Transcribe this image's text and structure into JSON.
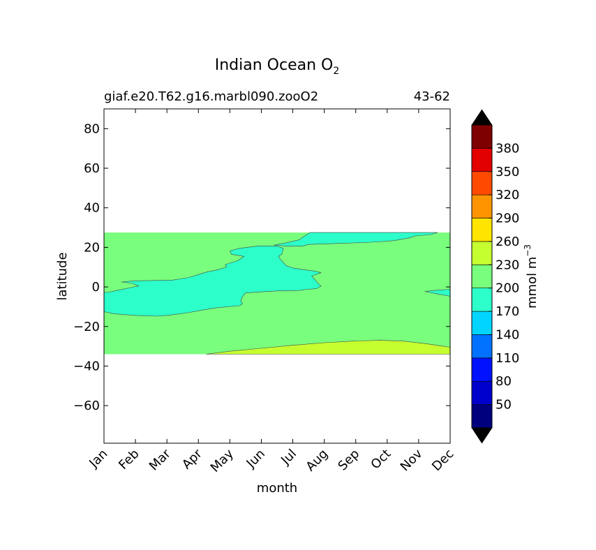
{
  "chart_data": {
    "type": "heatmap",
    "title": "Indian Ocean O",
    "title_subscript": "2",
    "subtitle_left": "giaf.e20.T62.g16.marbl090.zooO2",
    "subtitle_right": "43-62",
    "xlabel": "month",
    "ylabel": "latitude",
    "x_ticks": [
      "Jan",
      "Feb",
      "Mar",
      "Apr",
      "May",
      "Jun",
      "Jul",
      "Aug",
      "Sep",
      "Oct",
      "Nov",
      "Dec"
    ],
    "xlim": [
      0,
      11
    ],
    "ylim": [
      -79,
      90
    ],
    "y_ticks": [
      80,
      60,
      40,
      20,
      0,
      -20,
      -40,
      -60
    ],
    "y_tick_labels": [
      "80",
      "60",
      "40",
      "20",
      "0",
      "−20",
      "−40",
      "−60"
    ],
    "data_lat_range": [
      -34,
      27.5
    ],
    "colorbar": {
      "label": "mmol m",
      "label_sup": "−3",
      "levels": [
        20,
        50,
        80,
        110,
        140,
        170,
        200,
        230,
        260,
        290,
        320,
        350,
        380,
        410
      ],
      "tick_labels": [
        "50",
        "80",
        "110",
        "140",
        "170",
        "200",
        "230",
        "260",
        "290",
        "320",
        "350",
        "380"
      ],
      "colors": [
        "#00007f",
        "#0000cd",
        "#0012ff",
        "#0072ff",
        "#00d4ff",
        "#2cffca",
        "#79ff7d",
        "#c6ff30",
        "#ffe500",
        "#ff9400",
        "#ff4a00",
        "#e30000",
        "#7f0000"
      ],
      "extend_low_color": "#000000",
      "extend_high_color": "#000000"
    },
    "background_band": {
      "range": [
        200,
        230
      ],
      "lat_range": [
        -34,
        27.5
      ],
      "x_range": [
        0,
        11
      ]
    },
    "regions": [
      {
        "range": [
          170,
          200
        ],
        "name": "",
        "points": [
          [
            0,
            -2.8
          ],
          [
            0.15,
            -2.6
          ],
          [
            0.4,
            -1.8
          ],
          [
            0.8,
            -0.5
          ],
          [
            1.1,
            0.5
          ],
          [
            0.9,
            1.8
          ],
          [
            0.55,
            2.5
          ],
          [
            0.9,
            3
          ],
          [
            2.2,
            3.5
          ],
          [
            2.7,
            4.8
          ],
          [
            3.05,
            6.5
          ],
          [
            3.3,
            7.7
          ],
          [
            3.6,
            8.6
          ],
          [
            3.9,
            10.1
          ],
          [
            3.85,
            11.3
          ],
          [
            4.25,
            13.3
          ],
          [
            4.45,
            15.4
          ],
          [
            4.05,
            16.5
          ],
          [
            4.0,
            18.2
          ],
          [
            4.3,
            19.5
          ],
          [
            4.9,
            20.7
          ],
          [
            5.5,
            20.7
          ],
          [
            5.7,
            19.5
          ],
          [
            5.65,
            16.6
          ],
          [
            5.55,
            15.6
          ],
          [
            5.6,
            14
          ],
          [
            5.7,
            12.3
          ],
          [
            5.8,
            10.7
          ],
          [
            6.0,
            9.6
          ],
          [
            6.4,
            8.6
          ],
          [
            6.7,
            8
          ],
          [
            6.9,
            7.2
          ],
          [
            6.6,
            5.5
          ],
          [
            6.7,
            3.8
          ],
          [
            6.8,
            1.8
          ],
          [
            6.9,
            0.5
          ],
          [
            6.75,
            -0.9
          ],
          [
            6.45,
            -1.2
          ],
          [
            6.2,
            -1.8
          ],
          [
            5.5,
            -2
          ],
          [
            4.5,
            -3
          ],
          [
            4.4,
            -5
          ],
          [
            4.35,
            -7
          ],
          [
            4.4,
            -8.5
          ],
          [
            4.3,
            -9.5
          ],
          [
            3.6,
            -10.5
          ],
          [
            3.2,
            -11.5
          ],
          [
            2.6,
            -13.2
          ],
          [
            2,
            -14.4
          ],
          [
            1.7,
            -14.8
          ],
          [
            1,
            -14.4
          ],
          [
            0.3,
            -13.5
          ],
          [
            0,
            -12.5
          ]
        ]
      },
      {
        "range": [
          170,
          200
        ],
        "name": "",
        "points": [
          [
            5.4,
            21.2
          ],
          [
            5.8,
            22.3
          ],
          [
            6.2,
            23.8
          ],
          [
            6.35,
            25.5
          ],
          [
            6.55,
            27.5
          ],
          [
            10.6,
            27.5
          ],
          [
            10.4,
            26.5
          ],
          [
            9.9,
            25.8
          ],
          [
            9.7,
            24.8
          ],
          [
            9.2,
            23.4
          ],
          [
            8.5,
            22.6
          ],
          [
            7.5,
            22
          ],
          [
            6.5,
            21.5
          ],
          [
            6.3,
            20.6
          ],
          [
            5.8,
            20.6
          ]
        ]
      },
      {
        "range": [
          170,
          200
        ],
        "name": "",
        "points": [
          [
            10.2,
            -2.3
          ],
          [
            10.55,
            -1.7
          ],
          [
            11,
            -1.2
          ],
          [
            11,
            -4.7
          ],
          [
            10.55,
            -3.4
          ],
          [
            10.35,
            -2.8
          ]
        ]
      },
      {
        "range": [
          230,
          260
        ],
        "name": "",
        "points": [
          [
            3.25,
            -34
          ],
          [
            4,
            -32.5
          ],
          [
            5,
            -31
          ],
          [
            6,
            -29.5
          ],
          [
            7,
            -28.2
          ],
          [
            8,
            -27.3
          ],
          [
            8.8,
            -27
          ],
          [
            9.5,
            -27.4
          ],
          [
            10.2,
            -28.6
          ],
          [
            11,
            -30.5
          ],
          [
            11,
            -34
          ]
        ]
      }
    ]
  }
}
